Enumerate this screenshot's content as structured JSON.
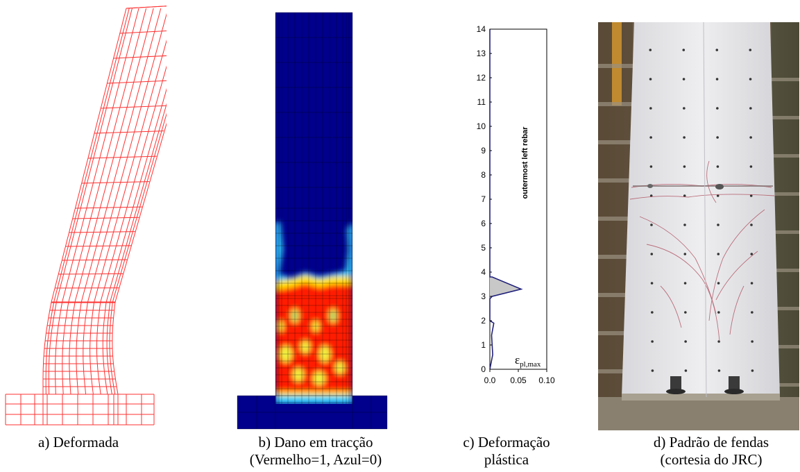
{
  "figure": {
    "panels": [
      {
        "id": "a",
        "caption_line1": "a) Deformada",
        "caption_line2": ""
      },
      {
        "id": "b",
        "caption_line1": "b) Dano em tracção",
        "caption_line2": "(Vermelho=1, Azul=0)"
      },
      {
        "id": "c",
        "caption_line1": "c) Deformação",
        "caption_line2": "plástica"
      },
      {
        "id": "d",
        "caption_line1": "d) Padrão de fendas",
        "caption_line2": "(cortesia do JRC)"
      }
    ],
    "colors": {
      "mesh": "#ff3030",
      "damage_blue": "#00008c",
      "damage_red": "#ff1a00",
      "plot_line": "#1f1f7a",
      "plot_fill": "#c8c8c8"
    }
  },
  "chart_data": {
    "type": "area",
    "xlabel": "ε",
    "xlabel_subscript": "pl,max",
    "annotation": "outermost left rebar",
    "xlim": [
      0.0,
      0.1
    ],
    "ylim": [
      0,
      14
    ],
    "x_tick_labels": [
      "0.0",
      "0.05",
      "0.10"
    ],
    "y_tick_labels": [
      "0",
      "1",
      "2",
      "3",
      "4",
      "5",
      "6",
      "7",
      "8",
      "9",
      "10",
      "11",
      "12",
      "13",
      "14"
    ],
    "series": [
      {
        "x": [
          0.0,
          0.005,
          0.003,
          0.007,
          0.0,
          0.0,
          0.004,
          0.055,
          0.004,
          0.0,
          0.0
        ],
        "y": [
          0.0,
          0.6,
          1.4,
          1.9,
          2.0,
          2.9,
          3.0,
          3.3,
          3.8,
          3.8,
          14.0
        ]
      }
    ]
  }
}
